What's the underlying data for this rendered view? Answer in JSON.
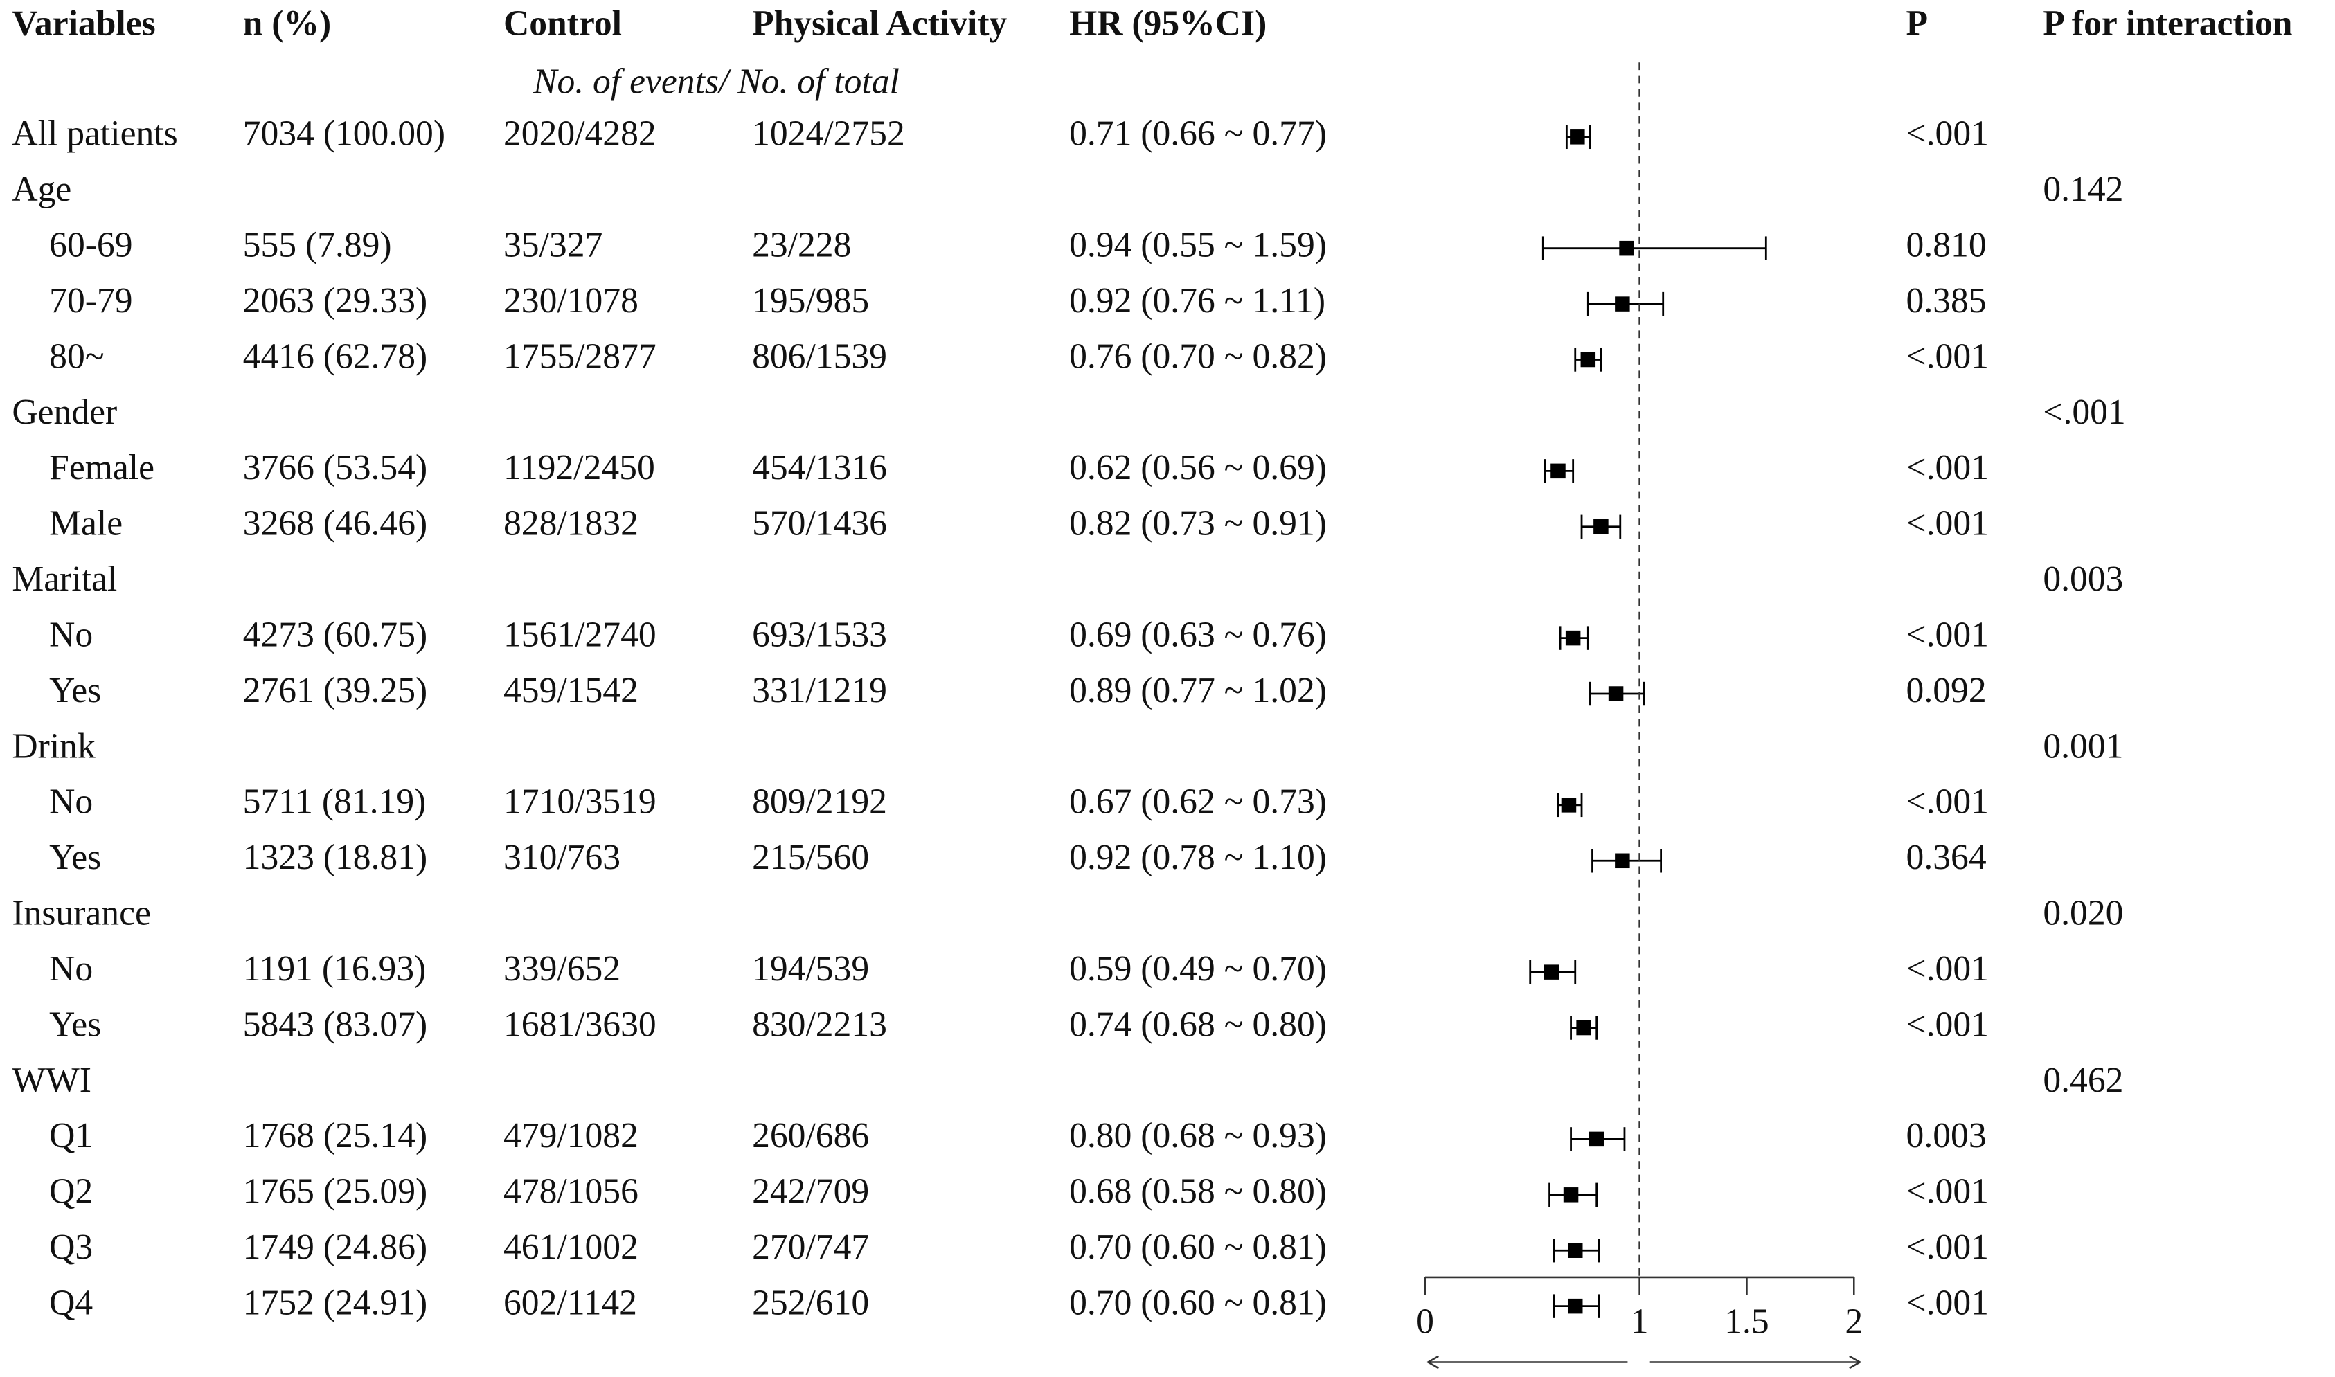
{
  "chart_data": {
    "type": "forest",
    "columns": [
      "Variables",
      "n (%)",
      "Control",
      "Physical Activity",
      "HR (95%CI)",
      "P",
      "P for interaction"
    ],
    "subheader": "No. of events/ No. of total",
    "overall": {
      "label": "All patients",
      "n": "7034 (100.00)",
      "control": "2020/4282",
      "pa": "1024/2752",
      "hr_text": "0.71 (0.66 ~ 0.77)",
      "hr": 0.71,
      "lo": 0.66,
      "hi": 0.77,
      "p": "<.001"
    },
    "groups": [
      {
        "label": "Age",
        "p_interaction": "0.142",
        "rows": [
          {
            "label": "60-69",
            "n": "555 (7.89)",
            "control": "35/327",
            "pa": "23/228",
            "hr_text": "0.94 (0.55 ~ 1.59)",
            "hr": 0.94,
            "lo": 0.55,
            "hi": 1.59,
            "p": "0.810"
          },
          {
            "label": "70-79",
            "n": "2063 (29.33)",
            "control": "230/1078",
            "pa": "195/985",
            "hr_text": "0.92 (0.76 ~ 1.11)",
            "hr": 0.92,
            "lo": 0.76,
            "hi": 1.11,
            "p": "0.385"
          },
          {
            "label": "80~",
            "n": "4416 (62.78)",
            "control": "1755/2877",
            "pa": "806/1539",
            "hr_text": "0.76 (0.70 ~ 0.82)",
            "hr": 0.76,
            "lo": 0.7,
            "hi": 0.82,
            "p": "<.001"
          }
        ]
      },
      {
        "label": "Gender",
        "p_interaction": "<.001",
        "rows": [
          {
            "label": "Female",
            "n": "3766 (53.54)",
            "control": "1192/2450",
            "pa": "454/1316",
            "hr_text": "0.62 (0.56 ~ 0.69)",
            "hr": 0.62,
            "lo": 0.56,
            "hi": 0.69,
            "p": "<.001"
          },
          {
            "label": "Male",
            "n": "3268 (46.46)",
            "control": "828/1832",
            "pa": "570/1436",
            "hr_text": "0.82 (0.73 ~ 0.91)",
            "hr": 0.82,
            "lo": 0.73,
            "hi": 0.91,
            "p": "<.001"
          }
        ]
      },
      {
        "label": "Marital",
        "p_interaction": "0.003",
        "rows": [
          {
            "label": "No",
            "n": "4273 (60.75)",
            "control": "1561/2740",
            "pa": "693/1533",
            "hr_text": "0.69 (0.63 ~ 0.76)",
            "hr": 0.69,
            "lo": 0.63,
            "hi": 0.76,
            "p": "<.001"
          },
          {
            "label": "Yes",
            "n": "2761 (39.25)",
            "control": "459/1542",
            "pa": "331/1219",
            "hr_text": "0.89 (0.77 ~ 1.02)",
            "hr": 0.89,
            "lo": 0.77,
            "hi": 1.02,
            "p": "0.092"
          }
        ]
      },
      {
        "label": "Drink",
        "p_interaction": "0.001",
        "rows": [
          {
            "label": "No",
            "n": "5711 (81.19)",
            "control": "1710/3519",
            "pa": "809/2192",
            "hr_text": "0.67 (0.62 ~ 0.73)",
            "hr": 0.67,
            "lo": 0.62,
            "hi": 0.73,
            "p": "<.001"
          },
          {
            "label": "Yes",
            "n": "1323 (18.81)",
            "control": "310/763",
            "pa": "215/560",
            "hr_text": "0.92 (0.78 ~ 1.10)",
            "hr": 0.92,
            "lo": 0.78,
            "hi": 1.1,
            "p": "0.364"
          }
        ]
      },
      {
        "label": "Insurance",
        "p_interaction": "0.020",
        "rows": [
          {
            "label": "No",
            "n": "1191 (16.93)",
            "control": "339/652",
            "pa": "194/539",
            "hr_text": "0.59 (0.49 ~ 0.70)",
            "hr": 0.59,
            "lo": 0.49,
            "hi": 0.7,
            "p": "<.001"
          },
          {
            "label": "Yes",
            "n": "5843 (83.07)",
            "control": "1681/3630",
            "pa": "830/2213",
            "hr_text": "0.74 (0.68 ~ 0.80)",
            "hr": 0.74,
            "lo": 0.68,
            "hi": 0.8,
            "p": "<.001"
          }
        ]
      },
      {
        "label": "WWI",
        "p_interaction": "0.462",
        "rows": [
          {
            "label": "Q1",
            "n": "1768 (25.14)",
            "control": "479/1082",
            "pa": "260/686",
            "hr_text": "0.80 (0.68 ~ 0.93)",
            "hr": 0.8,
            "lo": 0.68,
            "hi": 0.93,
            "p": "0.003"
          },
          {
            "label": "Q2",
            "n": "1765 (25.09)",
            "control": "478/1056",
            "pa": "242/709",
            "hr_text": "0.68 (0.58 ~ 0.80)",
            "hr": 0.68,
            "lo": 0.58,
            "hi": 0.8,
            "p": "<.001"
          },
          {
            "label": "Q3",
            "n": "1749 (24.86)",
            "control": "461/1002",
            "pa": "270/747",
            "hr_text": "0.70 (0.60 ~ 0.81)",
            "hr": 0.7,
            "lo": 0.6,
            "hi": 0.81,
            "p": "<.001"
          },
          {
            "label": "Q4",
            "n": "1752 (24.91)",
            "control": "602/1142",
            "pa": "252/610",
            "hr_text": "0.70 (0.60 ~ 0.81)",
            "hr": 0.7,
            "lo": 0.6,
            "hi": 0.81,
            "p": "<.001"
          }
        ]
      }
    ],
    "xlim": [
      0,
      2
    ],
    "xticks": [
      0,
      1,
      1.5,
      2
    ],
    "reference": 1,
    "color": "#000000"
  }
}
